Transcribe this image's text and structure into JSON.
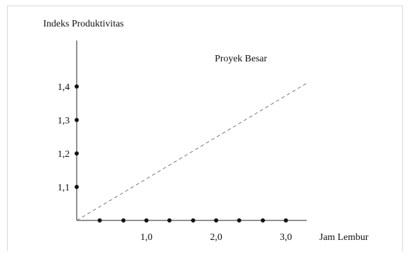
{
  "chart_data": {
    "type": "line",
    "ylabel": "Indeks Produktivitas",
    "xlabel": "Jam Lembur",
    "annotation": "Proyek Besar",
    "x_ticks": [
      {
        "value": 1.0,
        "label": "1,0"
      },
      {
        "value": 2.0,
        "label": "2,0"
      },
      {
        "value": 3.0,
        "label": "3,0"
      }
    ],
    "y_ticks": [
      {
        "value": 1.1,
        "label": "1,1"
      },
      {
        "value": 1.2,
        "label": "1,2"
      },
      {
        "value": 1.3,
        "label": "1,3"
      },
      {
        "value": 1.4,
        "label": "1,4"
      }
    ],
    "xlim": [
      0,
      3.3
    ],
    "ylim": [
      1.0,
      1.6
    ],
    "x_axis_dots": [
      0.33,
      0.67,
      1.0,
      1.33,
      1.67,
      2.0,
      2.33,
      2.67,
      3.0
    ],
    "y_axis_dots": [
      1.1,
      1.2,
      1.3,
      1.4
    ],
    "series": [
      {
        "line_style": "dashed",
        "x": [
          0,
          3.3
        ],
        "y": [
          1.0,
          1.41
        ]
      }
    ],
    "grid": false
  }
}
